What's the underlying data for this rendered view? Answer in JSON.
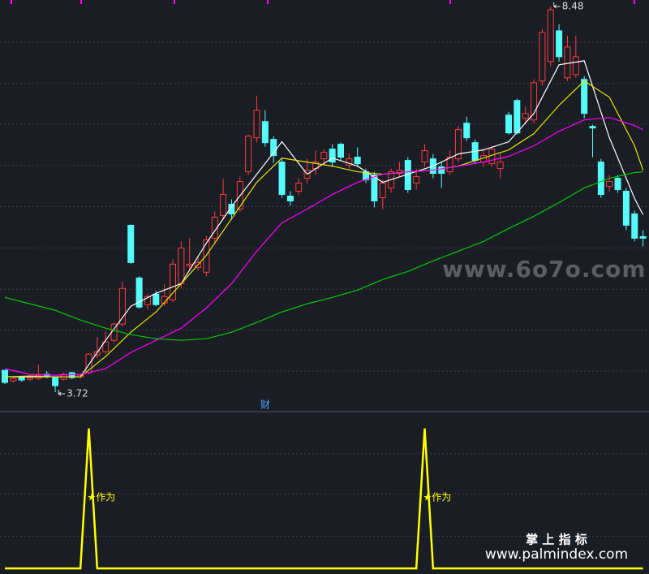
{
  "chart_data": [
    {
      "type": "candlestick",
      "open": [
        3.99,
        3.86,
        3.9,
        3.88,
        3.89,
        3.94,
        3.9,
        3.88,
        3.96,
        3.91,
        3.96,
        4.18,
        4.22,
        4.36,
        4.56,
        5.78,
        5.13,
        4.8,
        4.93,
        4.82,
        4.86,
        5.06,
        5.28,
        5.26,
        5.2,
        5.62,
        5.9,
        6.04,
        5.98,
        6.44,
        6.86,
        7.06,
        6.84,
        6.56,
        6.14,
        6.2,
        6.36,
        6.48,
        6.6,
        6.72,
        6.78,
        6.52,
        6.62,
        6.44,
        6.4,
        6.12,
        6.24,
        6.42,
        6.58,
        6.3,
        6.56,
        6.6,
        6.5,
        6.44,
        6.6,
        7.04,
        6.8,
        6.56,
        6.54,
        6.48,
        7.14,
        7.32,
        7.1,
        7.08,
        7.56,
        7.8,
        8.18,
        7.6,
        7.64,
        7.58,
        7.0,
        6.56,
        6.26,
        6.36,
        6.2,
        5.92,
        5.64
      ],
      "high": [
        3.99,
        3.91,
        3.92,
        3.93,
        4.06,
        3.98,
        3.91,
        3.96,
        3.97,
        3.95,
        4.2,
        4.4,
        4.47,
        4.58,
        5.08,
        5.79,
        5.15,
        4.93,
        4.97,
        5.05,
        5.36,
        5.58,
        5.62,
        5.4,
        5.65,
        5.95,
        6.35,
        6.1,
        6.38,
        6.9,
        7.38,
        7.2,
        6.88,
        6.6,
        6.2,
        6.36,
        6.6,
        6.7,
        6.72,
        6.78,
        6.8,
        6.66,
        6.74,
        6.48,
        6.44,
        6.34,
        6.48,
        6.56,
        6.62,
        6.48,
        6.78,
        6.66,
        6.56,
        6.7,
        7.0,
        7.12,
        6.84,
        6.72,
        6.76,
        6.68,
        7.18,
        7.34,
        7.24,
        7.58,
        8.2,
        8.48,
        8.26,
        8.12,
        8.12,
        7.62,
        7.02,
        6.6,
        6.4,
        6.4,
        6.24,
        5.96,
        5.72
      ],
      "low": [
        3.82,
        3.84,
        3.85,
        3.86,
        3.87,
        3.89,
        3.72,
        3.86,
        3.88,
        3.89,
        3.94,
        4.14,
        4.19,
        4.34,
        4.53,
        5.3,
        4.75,
        4.74,
        4.78,
        4.78,
        4.83,
        5.0,
        5.22,
        5.22,
        5.15,
        5.55,
        5.85,
        5.85,
        5.95,
        6.4,
        6.8,
        6.75,
        6.55,
        6.12,
        6.02,
        6.15,
        6.3,
        6.4,
        6.52,
        6.5,
        6.58,
        6.48,
        6.5,
        6.3,
        6.0,
        5.98,
        6.18,
        6.38,
        6.18,
        6.22,
        6.5,
        6.36,
        6.24,
        6.4,
        6.56,
        6.82,
        6.54,
        6.5,
        6.5,
        6.36,
        6.9,
        6.9,
        7.02,
        7.04,
        7.5,
        7.74,
        7.8,
        7.56,
        7.6,
        7.1,
        6.62,
        6.12,
        6.2,
        6.18,
        5.72,
        5.58,
        5.52
      ],
      "close": [
        3.84,
        3.89,
        3.87,
        3.9,
        3.93,
        3.91,
        3.8,
        3.94,
        3.9,
        3.93,
        4.19,
        4.22,
        4.34,
        4.56,
        5.0,
        5.32,
        4.77,
        4.9,
        4.8,
        4.9,
        5.3,
        5.5,
        5.3,
        5.32,
        5.6,
        5.88,
        6.16,
        5.92,
        6.32,
        6.88,
        7.2,
        6.8,
        6.64,
        6.16,
        6.08,
        6.3,
        6.46,
        6.56,
        6.68,
        6.56,
        6.62,
        6.6,
        6.54,
        6.34,
        6.08,
        6.3,
        6.44,
        6.46,
        6.22,
        6.38,
        6.7,
        6.42,
        6.42,
        6.62,
        6.96,
        6.86,
        6.58,
        6.64,
        6.72,
        6.56,
        6.92,
        6.92,
        7.16,
        7.54,
        8.16,
        8.44,
        7.86,
        7.98,
        7.86,
        7.16,
        6.98,
        6.16,
        6.32,
        6.22,
        5.78,
        5.62,
        5.62
      ],
      "up_color": "#ff3b3b",
      "down_color": "#54fcfc",
      "lines": [
        {
          "color": "#ffffff",
          "x": [
            0,
            3,
            6,
            9,
            12,
            15,
            18,
            21,
            24,
            27,
            30,
            33,
            36,
            39,
            42,
            45,
            48,
            51,
            54,
            57,
            60,
            63,
            66,
            69,
            72,
            75,
            76
          ],
          "values": [
            3.91,
            3.91,
            3.91,
            3.91,
            4.36,
            4.78,
            4.94,
            5.06,
            5.56,
            6.01,
            6.41,
            6.81,
            6.41,
            6.61,
            6.51,
            6.31,
            6.41,
            6.51,
            6.66,
            6.71,
            6.81,
            7.16,
            7.76,
            7.81,
            6.86,
            6.11,
            5.91
          ]
        },
        {
          "color": "#e6e600",
          "x": [
            0,
            3,
            6,
            9,
            12,
            15,
            18,
            21,
            24,
            27,
            30,
            33,
            36,
            39,
            42,
            45,
            48,
            51,
            54,
            57,
            60,
            63,
            66,
            69,
            72,
            75,
            76
          ],
          "values": [
            3.91,
            3.92,
            3.91,
            3.91,
            4.16,
            4.46,
            4.71,
            5.06,
            5.41,
            5.86,
            6.31,
            6.61,
            6.56,
            6.51,
            6.44,
            6.41,
            6.44,
            6.46,
            6.51,
            6.61,
            6.71,
            6.91,
            7.26,
            7.56,
            7.36,
            6.76,
            6.46
          ]
        },
        {
          "color": "#ff00ff",
          "x": [
            0,
            3,
            6,
            9,
            12,
            15,
            18,
            21,
            24,
            27,
            30,
            33,
            36,
            39,
            42,
            45,
            48,
            51,
            54,
            57,
            60,
            63,
            66,
            69,
            72,
            75,
            76
          ],
          "values": [
            4.01,
            3.94,
            3.93,
            3.94,
            4.01,
            4.21,
            4.36,
            4.51,
            4.76,
            5.06,
            5.46,
            5.81,
            5.98,
            6.16,
            6.31,
            6.41,
            6.44,
            6.46,
            6.51,
            6.56,
            6.63,
            6.76,
            6.94,
            7.08,
            7.11,
            7.01,
            6.96
          ]
        },
        {
          "color": "#00cc00",
          "x": [
            0,
            3,
            6,
            9,
            12,
            15,
            18,
            21,
            24,
            27,
            30,
            33,
            36,
            39,
            42,
            45,
            48,
            51,
            54,
            57,
            60,
            63,
            66,
            69,
            72,
            75,
            76
          ],
          "values": [
            4.89,
            4.81,
            4.73,
            4.61,
            4.51,
            4.43,
            4.38,
            4.36,
            4.38,
            4.46,
            4.58,
            4.71,
            4.81,
            4.89,
            4.98,
            5.11,
            5.21,
            5.34,
            5.46,
            5.58,
            5.74,
            5.89,
            6.06,
            6.24,
            6.36,
            6.43,
            6.44
          ]
        }
      ],
      "annotations": [
        {
          "x": 31,
          "text": "财"
        }
      ],
      "ylim": [
        3.48,
        8.56
      ],
      "yticks": [
        8.04,
        7.53,
        7.03,
        6.52,
        6.01,
        5.5,
        4.99,
        4.49,
        3.98
      ],
      "grid": true
    },
    {
      "type": "line",
      "color": "#ffff00",
      "values": [
        0,
        0,
        0,
        0,
        0,
        0,
        0,
        0,
        0,
        0,
        1,
        0,
        0,
        0,
        0,
        0,
        0,
        0,
        0,
        0,
        0,
        0,
        0,
        0,
        0,
        0,
        0,
        0,
        0,
        0,
        0,
        0,
        0,
        0,
        0,
        0,
        0,
        0,
        0,
        0,
        0,
        0,
        0,
        0,
        0,
        0,
        0,
        0,
        0,
        0,
        1,
        0,
        0,
        0,
        0,
        0,
        0,
        0,
        0,
        0,
        0,
        0,
        0,
        0,
        0,
        0,
        0,
        0,
        0,
        0,
        0,
        0,
        0,
        0,
        0,
        0,
        0
      ],
      "annotations": [
        {
          "x": 10,
          "text": "★作为"
        },
        {
          "x": 50,
          "text": "★作为"
        }
      ],
      "ylim": [
        -0.04,
        1.12
      ],
      "yticks": [
        0.23,
        0.53,
        0.82
      ],
      "grid": true
    }
  ],
  "watermark": "www.6o7o.com",
  "footer": {
    "title": "掌 上 指 标",
    "url": "www.palmindex.com"
  }
}
